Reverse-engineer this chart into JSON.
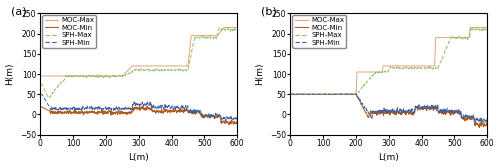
{
  "xlim": [
    0,
    600
  ],
  "ylim": [
    -50,
    250
  ],
  "yticks": [
    -50,
    0,
    50,
    100,
    150,
    200,
    250
  ],
  "xticks": [
    0,
    100,
    200,
    300,
    400,
    500,
    600
  ],
  "xlabel": "L(m)",
  "ylabel": "H(m)",
  "legend_labels": [
    "MOC-Max",
    "MOC-Min",
    "SPH-Max",
    "SPH-Min"
  ],
  "colors": {
    "MOC-Max": "#E8A080",
    "MOC-Min": "#B05A20",
    "SPH-Max": "#90C060",
    "SPH-Min": "#4060A0"
  },
  "panel_labels": [
    "(a)",
    "(b)"
  ],
  "figsize": [
    5.0,
    1.68
  ],
  "dpi": 100
}
